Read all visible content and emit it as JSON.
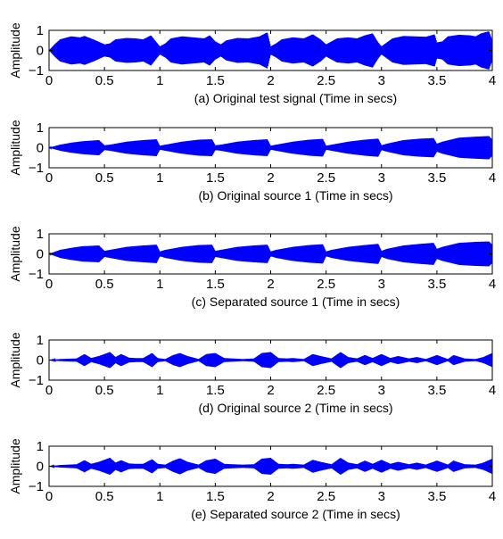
{
  "figure": {
    "panel_count": 5,
    "background": "#ffffff",
    "axes_color": "#000000",
    "signal_color": "#0000ff"
  },
  "chart_data": [
    {
      "type": "line",
      "panel": "a",
      "title": "",
      "xlabel": "(a) Original test signal  (Time  in secs)",
      "ylabel": "Amplitude",
      "xlim": [
        0,
        4
      ],
      "ylim": [
        -1,
        1
      ],
      "xticks": [
        "0",
        "0.5",
        "1",
        "1.5",
        "2",
        "2.5",
        "3",
        "3.5",
        "4"
      ],
      "yticks": [
        "1",
        "0",
        "−1"
      ],
      "grid": false,
      "series": [
        {
          "color": "#0000ff",
          "envelope": {
            "t": [
              0,
              0.05,
              0.1,
              0.2,
              0.28,
              0.32,
              0.4,
              0.5,
              0.55,
              0.6,
              0.7,
              0.78,
              0.85,
              0.92,
              0.97,
              1.0,
              1.05,
              1.1,
              1.2,
              1.3,
              1.4,
              1.45,
              1.5,
              1.55,
              1.6,
              1.7,
              1.8,
              1.9,
              1.97,
              2.0,
              2.05,
              2.1,
              2.2,
              2.3,
              2.38,
              2.45,
              2.5,
              2.55,
              2.6,
              2.7,
              2.78,
              2.85,
              2.92,
              2.97,
              3.0,
              3.05,
              3.1,
              3.2,
              3.3,
              3.4,
              3.48,
              3.5,
              3.55,
              3.6,
              3.7,
              3.8,
              3.85,
              3.9,
              3.97,
              4.0
            ],
            "amplitude": [
              0.0,
              0.3,
              0.55,
              0.7,
              0.65,
              0.72,
              0.55,
              0.3,
              0.35,
              0.55,
              0.62,
              0.6,
              0.55,
              0.75,
              0.4,
              0.2,
              0.35,
              0.6,
              0.7,
              0.65,
              0.6,
              0.75,
              0.45,
              0.3,
              0.5,
              0.62,
              0.6,
              0.7,
              0.9,
              0.2,
              0.35,
              0.55,
              0.65,
              0.6,
              0.8,
              0.55,
              0.3,
              0.45,
              0.6,
              0.65,
              0.6,
              0.75,
              0.85,
              0.4,
              0.2,
              0.4,
              0.6,
              0.72,
              0.7,
              0.68,
              0.8,
              0.4,
              0.45,
              0.7,
              0.78,
              0.75,
              0.7,
              0.85,
              0.95,
              0.5
            ]
          },
          "carrier_cycles_per_sec": 180
        }
      ]
    },
    {
      "type": "line",
      "panel": "b",
      "title": "",
      "xlabel": "(b) Original source 1 (Time in secs)",
      "ylabel": "Amplitude",
      "xlim": [
        0,
        4
      ],
      "ylim": [
        -1,
        1
      ],
      "xticks": [
        "0",
        "0.5",
        "1",
        "1.5",
        "2",
        "2.5",
        "3",
        "3.5",
        "4"
      ],
      "yticks": [
        "1",
        "0",
        "−1"
      ],
      "grid": false,
      "series": [
        {
          "color": "#0000ff",
          "envelope": {
            "t": [
              0,
              0.1,
              0.2,
              0.3,
              0.45,
              0.5,
              0.55,
              0.7,
              0.85,
              0.97,
              1.0,
              1.05,
              1.2,
              1.35,
              1.47,
              1.5,
              1.55,
              1.7,
              1.85,
              1.97,
              2.0,
              2.05,
              2.2,
              2.35,
              2.47,
              2.5,
              2.55,
              2.7,
              2.85,
              2.97,
              3.0,
              3.05,
              3.2,
              3.35,
              3.47,
              3.5,
              3.55,
              3.7,
              3.85,
              3.97,
              4.0
            ],
            "amplitude": [
              0.0,
              0.15,
              0.25,
              0.32,
              0.38,
              0.12,
              0.15,
              0.3,
              0.38,
              0.42,
              0.1,
              0.15,
              0.3,
              0.4,
              0.42,
              0.12,
              0.15,
              0.3,
              0.38,
              0.42,
              0.1,
              0.15,
              0.3,
              0.4,
              0.44,
              0.1,
              0.15,
              0.3,
              0.4,
              0.45,
              0.12,
              0.2,
              0.38,
              0.45,
              0.48,
              0.2,
              0.3,
              0.5,
              0.55,
              0.58,
              0.4
            ]
          },
          "carrier_cycles_per_sec": 180
        }
      ]
    },
    {
      "type": "line",
      "panel": "c",
      "title": "",
      "xlabel": "(c) Separated source 1 (Time in secs)",
      "ylabel": "Amplitude",
      "xlim": [
        0,
        4
      ],
      "ylim": [
        -1,
        1
      ],
      "xticks": [
        "0",
        "0.5",
        "1",
        "1.5",
        "2",
        "2.5",
        "3",
        "3.5",
        "4"
      ],
      "yticks": [
        "1",
        "0",
        "−1"
      ],
      "grid": false,
      "series": [
        {
          "color": "#0000ff",
          "envelope": {
            "t": [
              0,
              0.1,
              0.2,
              0.3,
              0.45,
              0.5,
              0.55,
              0.7,
              0.85,
              0.97,
              1.0,
              1.05,
              1.2,
              1.35,
              1.47,
              1.5,
              1.55,
              1.7,
              1.85,
              1.97,
              2.0,
              2.05,
              2.2,
              2.35,
              2.47,
              2.5,
              2.55,
              2.7,
              2.85,
              2.97,
              3.0,
              3.05,
              3.2,
              3.35,
              3.47,
              3.5,
              3.55,
              3.7,
              3.85,
              3.97,
              4.0
            ],
            "amplitude": [
              0.0,
              0.2,
              0.3,
              0.38,
              0.42,
              0.15,
              0.2,
              0.35,
              0.42,
              0.46,
              0.12,
              0.2,
              0.35,
              0.44,
              0.46,
              0.15,
              0.2,
              0.35,
              0.42,
              0.46,
              0.12,
              0.2,
              0.35,
              0.44,
              0.48,
              0.12,
              0.2,
              0.35,
              0.44,
              0.5,
              0.15,
              0.25,
              0.42,
              0.5,
              0.55,
              0.25,
              0.35,
              0.55,
              0.6,
              0.62,
              0.45
            ]
          },
          "carrier_cycles_per_sec": 180
        }
      ]
    },
    {
      "type": "line",
      "panel": "d",
      "title": "",
      "xlabel": "(d) Original source 2 (Time in secs)",
      "ylabel": "Amplitude",
      "xlim": [
        0,
        4
      ],
      "ylim": [
        -1,
        1
      ],
      "xticks": [
        "0",
        "0.5",
        "1",
        "1.5",
        "2",
        "2.5",
        "3",
        "3.5",
        "4"
      ],
      "yticks": [
        "1",
        "0",
        "−1"
      ],
      "grid": false,
      "series": [
        {
          "color": "#0000ff",
          "envelope": {
            "t": [
              0,
              0.1,
              0.25,
              0.32,
              0.38,
              0.45,
              0.55,
              0.6,
              0.65,
              0.72,
              0.78,
              0.85,
              0.93,
              0.98,
              1.05,
              1.12,
              1.18,
              1.25,
              1.35,
              1.42,
              1.5,
              1.58,
              1.65,
              1.75,
              1.85,
              1.92,
              2.0,
              2.07,
              2.15,
              2.2,
              2.3,
              2.38,
              2.45,
              2.55,
              2.63,
              2.7,
              2.78,
              2.85,
              2.92,
              3.0,
              3.08,
              3.15,
              3.25,
              3.32,
              3.4,
              3.5,
              3.6,
              3.65,
              3.75,
              3.85,
              3.92,
              4.0
            ],
            "amplitude": [
              0.0,
              0.05,
              0.08,
              0.3,
              0.1,
              0.2,
              0.4,
              0.15,
              0.3,
              0.12,
              0.1,
              0.1,
              0.35,
              0.1,
              0.05,
              0.25,
              0.35,
              0.2,
              0.05,
              0.3,
              0.35,
              0.1,
              0.08,
              0.05,
              0.08,
              0.35,
              0.4,
              0.1,
              0.08,
              0.1,
              0.05,
              0.3,
              0.2,
              0.08,
              0.4,
              0.15,
              0.08,
              0.25,
              0.1,
              0.3,
              0.1,
              0.2,
              0.08,
              0.15,
              0.05,
              0.25,
              0.05,
              0.25,
              0.08,
              0.05,
              0.15,
              0.35
            ]
          },
          "carrier_cycles_per_sec": 180
        }
      ]
    },
    {
      "type": "line",
      "panel": "e",
      "title": "",
      "xlabel": "(e) Separated source 2 (Time in secs)",
      "ylabel": "Amplitude",
      "xlim": [
        0,
        4
      ],
      "ylim": [
        -1,
        1
      ],
      "xticks": [
        "0",
        "0.5",
        "1",
        "1.5",
        "2",
        "2.5",
        "3",
        "3.5",
        "4"
      ],
      "yticks": [
        "1",
        "0",
        "−1"
      ],
      "grid": false,
      "series": [
        {
          "color": "#0000ff",
          "envelope": {
            "t": [
              0,
              0.1,
              0.25,
              0.32,
              0.38,
              0.45,
              0.55,
              0.6,
              0.65,
              0.72,
              0.78,
              0.85,
              0.93,
              0.98,
              1.05,
              1.12,
              1.18,
              1.25,
              1.35,
              1.42,
              1.5,
              1.58,
              1.65,
              1.75,
              1.85,
              1.92,
              2.0,
              2.07,
              2.15,
              2.2,
              2.3,
              2.38,
              2.45,
              2.55,
              2.63,
              2.7,
              2.78,
              2.85,
              2.92,
              3.0,
              3.08,
              3.15,
              3.25,
              3.32,
              3.4,
              3.5,
              3.6,
              3.65,
              3.75,
              3.85,
              3.92,
              4.0
            ],
            "amplitude": [
              0.0,
              0.06,
              0.1,
              0.3,
              0.12,
              0.22,
              0.42,
              0.18,
              0.3,
              0.14,
              0.12,
              0.12,
              0.35,
              0.12,
              0.08,
              0.28,
              0.4,
              0.22,
              0.08,
              0.3,
              0.38,
              0.12,
              0.1,
              0.08,
              0.1,
              0.38,
              0.42,
              0.12,
              0.1,
              0.12,
              0.08,
              0.32,
              0.22,
              0.1,
              0.42,
              0.18,
              0.1,
              0.28,
              0.12,
              0.32,
              0.12,
              0.22,
              0.1,
              0.18,
              0.08,
              0.28,
              0.08,
              0.28,
              0.1,
              0.08,
              0.18,
              0.38
            ]
          },
          "carrier_cycles_per_sec": 180
        }
      ]
    }
  ]
}
